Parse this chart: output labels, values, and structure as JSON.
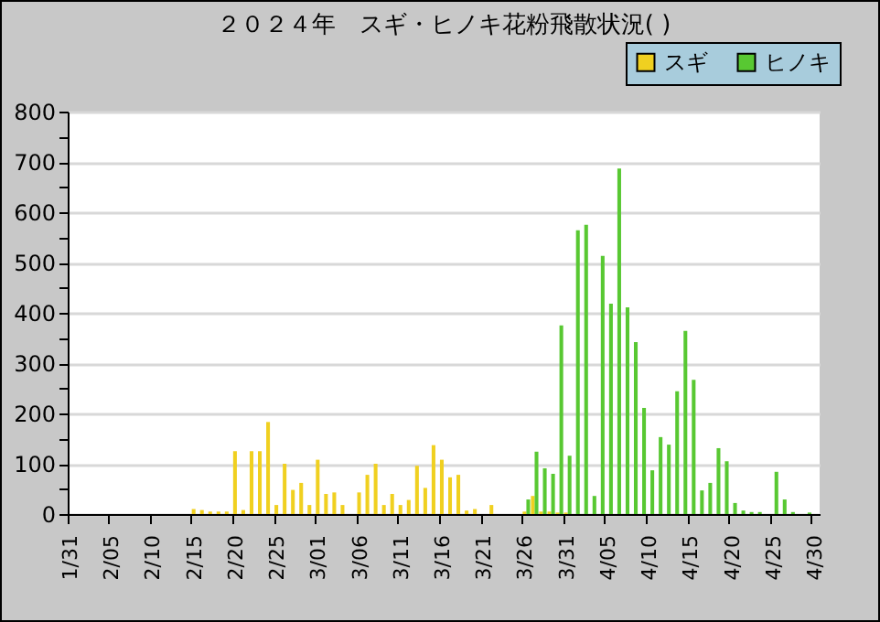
{
  "chart_data": {
    "type": "bar",
    "title": "２０２４年　スギ・ヒノキ花粉飛散状況( )",
    "categories": [
      "1/31",
      null,
      null,
      null,
      null,
      "2/05",
      null,
      null,
      null,
      null,
      "2/10",
      null,
      null,
      null,
      null,
      "2/15",
      null,
      null,
      null,
      null,
      "2/20",
      null,
      null,
      null,
      null,
      "2/25",
      null,
      null,
      null,
      null,
      "3/01",
      null,
      null,
      null,
      null,
      "3/06",
      null,
      null,
      null,
      null,
      "3/11",
      null,
      null,
      null,
      null,
      "3/16",
      null,
      null,
      null,
      null,
      "3/21",
      null,
      null,
      null,
      null,
      "3/26",
      null,
      null,
      null,
      null,
      "3/31",
      null,
      null,
      null,
      null,
      "4/05",
      null,
      null,
      null,
      null,
      "4/10",
      null,
      null,
      null,
      null,
      "4/15",
      null,
      null,
      null,
      null,
      "4/20",
      null,
      null,
      null,
      null,
      "4/25",
      null,
      null,
      null,
      null,
      "4/30"
    ],
    "series": [
      {
        "name": "スギ",
        "color": "#f0d020",
        "values": [
          0,
          0,
          0,
          0,
          0,
          0,
          0,
          0,
          0,
          0,
          0,
          0,
          0,
          0,
          0,
          10,
          8,
          5,
          5,
          5,
          125,
          8,
          125,
          125,
          183,
          18,
          100,
          48,
          62,
          18,
          108,
          40,
          43,
          18,
          0,
          43,
          78,
          100,
          18,
          40,
          18,
          28,
          96,
          52,
          137,
          108,
          73,
          78,
          7,
          10,
          0,
          18,
          0,
          0,
          0,
          5,
          36,
          5,
          5,
          3,
          3,
          0,
          0,
          0,
          0,
          0,
          0,
          0,
          0,
          0,
          0,
          0,
          0,
          0,
          0,
          0,
          0,
          0,
          0,
          0,
          0,
          0,
          0,
          0,
          0,
          0,
          0,
          0,
          0,
          0,
          0
        ]
      },
      {
        "name": "ヒノキ",
        "color": "#58c832",
        "values": [
          0,
          0,
          0,
          0,
          0,
          0,
          0,
          0,
          0,
          0,
          0,
          0,
          0,
          0,
          0,
          0,
          0,
          0,
          0,
          0,
          0,
          0,
          0,
          0,
          0,
          0,
          0,
          0,
          0,
          0,
          0,
          0,
          0,
          0,
          0,
          0,
          0,
          0,
          0,
          0,
          0,
          0,
          0,
          0,
          0,
          0,
          0,
          0,
          0,
          0,
          0,
          0,
          0,
          0,
          0,
          29,
          124,
          91,
          80,
          375,
          116,
          564,
          575,
          36,
          513,
          418,
          687,
          411,
          342,
          211,
          87,
          153,
          138,
          244,
          364,
          267,
          47,
          62,
          131,
          105,
          22,
          7,
          4,
          4,
          0,
          84,
          29,
          4,
          0,
          3,
          0
        ]
      }
    ],
    "ylim": [
      0,
      800
    ],
    "yticks": [
      0,
      {
        "value": 50,
        "label": null
      },
      100,
      {
        "value": 150,
        "label": null
      },
      200,
      {
        "value": 250,
        "label": null
      },
      300,
      {
        "value": 350,
        "label": null
      },
      400,
      {
        "value": 450,
        "label": null
      },
      500,
      {
        "value": 550,
        "label": null
      },
      600,
      {
        "value": 650,
        "label": null
      },
      700,
      {
        "value": 750,
        "label": null
      },
      800
    ],
    "grid": "y",
    "legend": "top right"
  }
}
